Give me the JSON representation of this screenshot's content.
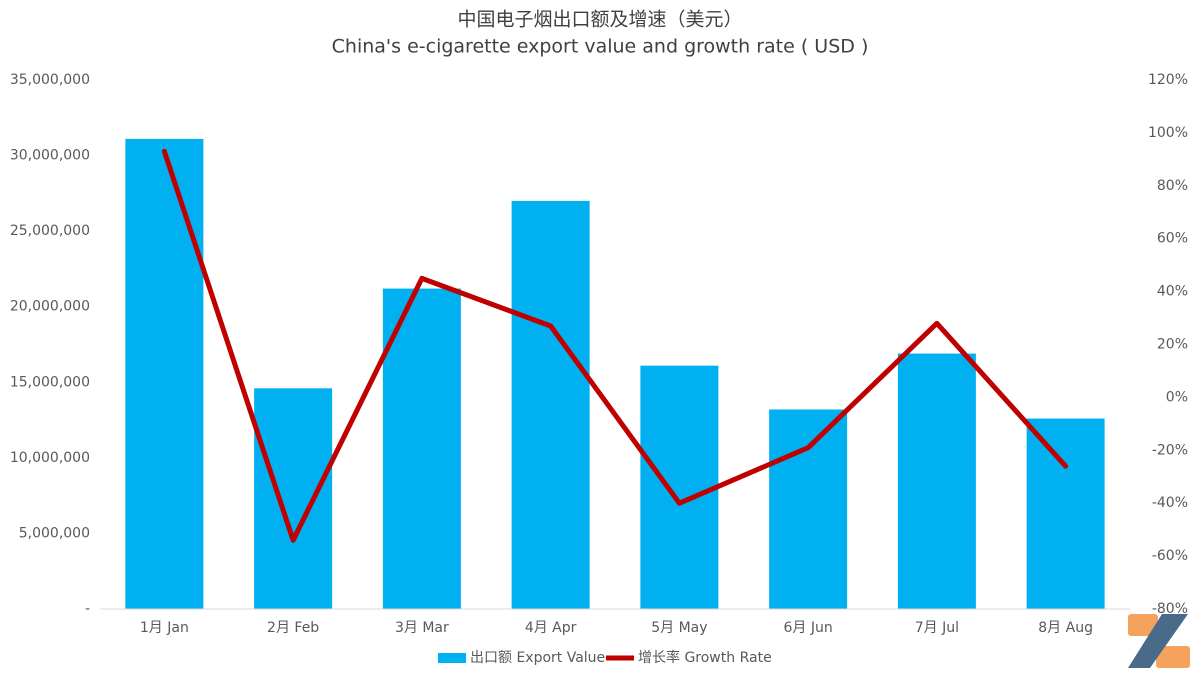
{
  "chart_data": {
    "type": "bar-line",
    "title": "中国电子烟出口额及增速（美元）",
    "subtitle": "China's e-cigarette export value and growth rate ( USD )",
    "categories": [
      "1月 Jan",
      "2月 Feb",
      "3月 Mar",
      "4月 Apr",
      "5月 May",
      "6月 Jun",
      "7月 Jul",
      "8月 Aug"
    ],
    "series": [
      {
        "name": "出口额 Export Value",
        "color": "#00b0f0",
        "type": "bar",
        "values": [
          31100000,
          14600000,
          21200000,
          27000000,
          16100000,
          13200000,
          16900000,
          12600000
        ]
      },
      {
        "name": "增长率 Growth Rate",
        "color": "#c00000",
        "type": "line",
        "axis": "y2",
        "values": [
          93,
          -54,
          45,
          27,
          -40,
          -19,
          28,
          -26
        ]
      }
    ],
    "ylim": [
      0,
      35000000
    ],
    "yticks": [
      {
        "value": 0,
        "label": "-"
      },
      {
        "value": 5000000,
        "label": "5,000,000"
      },
      {
        "value": 10000000,
        "label": "10,000,000"
      },
      {
        "value": 15000000,
        "label": "15,000,000"
      },
      {
        "value": 20000000,
        "label": "20,000,000"
      },
      {
        "value": 25000000,
        "label": "25,000,000"
      },
      {
        "value": 30000000,
        "label": "30,000,000"
      },
      {
        "value": 35000000,
        "label": "35,000,000"
      }
    ],
    "y2lim": [
      -80,
      120
    ],
    "y2ticks": [
      {
        "value": -80,
        "label": "-80%"
      },
      {
        "value": -60,
        "label": "-60%"
      },
      {
        "value": -40,
        "label": "-40%"
      },
      {
        "value": -20,
        "label": "-20%"
      },
      {
        "value": 0,
        "label": "0%"
      },
      {
        "value": 20,
        "label": "20%"
      },
      {
        "value": 40,
        "label": "40%"
      },
      {
        "value": 60,
        "label": "60%"
      },
      {
        "value": 80,
        "label": "80%"
      },
      {
        "value": 100,
        "label": "100%"
      },
      {
        "value": 120,
        "label": "120%"
      }
    ]
  }
}
